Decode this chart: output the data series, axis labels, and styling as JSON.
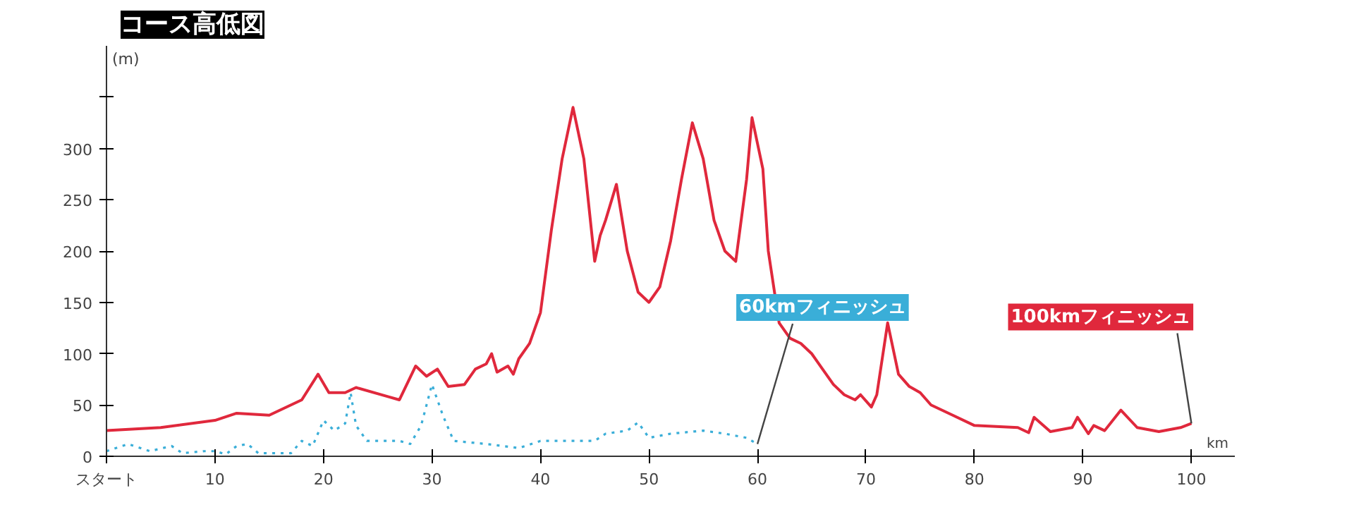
{
  "chart_data": {
    "type": "line",
    "title": "コース高低図",
    "xlabel": "km",
    "ylabel": "(m)",
    "xlim": [
      0,
      104
    ],
    "ylim": [
      0,
      400
    ],
    "xticks": [
      {
        "value": 0,
        "label": "スタート"
      },
      10,
      20,
      30,
      40,
      50,
      60,
      70,
      80,
      90,
      100
    ],
    "yticks": [
      0,
      50,
      100,
      150,
      200,
      250,
      300,
      {
        "value": 350,
        "label": null
      }
    ],
    "grid": false,
    "marker": "none",
    "series": [
      {
        "color": "#e0283c",
        "line_style": "solid",
        "x": [
          0,
          5,
          10,
          12,
          15,
          18,
          19.5,
          20.5,
          22,
          23,
          26,
          27,
          28.5,
          29.5,
          30.5,
          31.5,
          33,
          34,
          35,
          35.5,
          36,
          37,
          37.5,
          38,
          39,
          40,
          41,
          42,
          43,
          44,
          45,
          45.5,
          46,
          47,
          48,
          49,
          50,
          51,
          52,
          53,
          54,
          55,
          56,
          57,
          58,
          59,
          59.5,
          60.5,
          61,
          62,
          63,
          64,
          65,
          66,
          67,
          68,
          69,
          69.5,
          70.5,
          71,
          72,
          73,
          74,
          75,
          76,
          78,
          80,
          84,
          85,
          85.5,
          87,
          89,
          89.5,
          90.5,
          91,
          92,
          93.5,
          95,
          97,
          99,
          100
        ],
        "values": [
          25,
          28,
          35,
          42,
          40,
          55,
          80,
          62,
          62,
          67,
          58,
          55,
          88,
          78,
          85,
          68,
          70,
          85,
          90,
          100,
          82,
          88,
          80,
          95,
          110,
          140,
          220,
          290,
          340,
          290,
          190,
          215,
          230,
          265,
          200,
          160,
          150,
          165,
          210,
          270,
          325,
          290,
          230,
          200,
          190,
          270,
          330,
          280,
          200,
          130,
          115,
          110,
          100,
          85,
          70,
          60,
          55,
          60,
          48,
          60,
          130,
          80,
          68,
          62,
          50,
          40,
          30,
          28,
          23,
          38,
          24,
          28,
          38,
          22,
          30,
          25,
          45,
          28,
          24,
          28,
          32
        ]
      },
      {
        "color": "#3aaed8",
        "line_style": "dotted",
        "x": [
          0,
          2,
          4,
          6,
          7,
          9,
          10,
          11,
          12,
          13,
          14,
          17,
          18,
          19,
          20,
          21,
          22,
          22.5,
          23,
          24,
          27,
          28,
          29,
          30,
          31,
          32,
          35,
          38,
          40,
          45,
          46,
          48,
          49,
          50,
          52,
          55,
          57,
          59,
          60
        ],
        "values": [
          5,
          12,
          5,
          10,
          3,
          5,
          5,
          2,
          10,
          12,
          3,
          3,
          15,
          10,
          35,
          25,
          32,
          62,
          30,
          15,
          15,
          12,
          30,
          70,
          40,
          15,
          12,
          8,
          15,
          15,
          22,
          25,
          33,
          18,
          22,
          25,
          22,
          18,
          12
        ]
      }
    ],
    "annotations": [
      {
        "text": "60kmフィニッシュ",
        "x": 60,
        "y": 12
      },
      {
        "text": "100kmフィニッシュ",
        "x": 100,
        "y": 32
      }
    ]
  }
}
